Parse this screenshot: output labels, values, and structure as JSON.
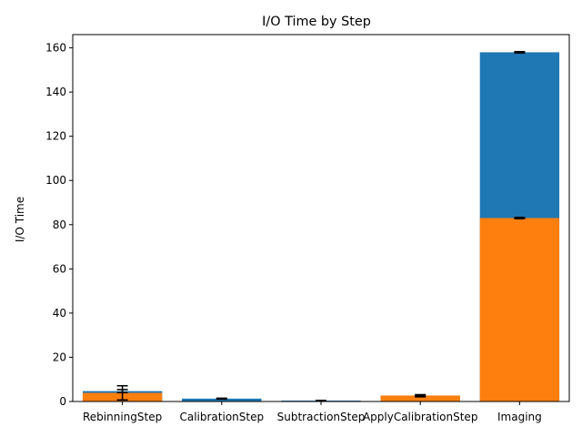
{
  "chart_data": {
    "type": "bar",
    "title": "I/O Time by Step",
    "xlabel": "",
    "ylabel": "I/O Time",
    "categories": [
      "RebinningStep",
      "CalibrationStep",
      "SubtractionStep",
      "ApplyCalibrationStep",
      "Imaging"
    ],
    "ylim": [
      0,
      166
    ],
    "yticks": [
      0,
      20,
      40,
      60,
      80,
      100,
      120,
      140,
      160
    ],
    "grid": false,
    "stacked": false,
    "series": [
      {
        "color": "#1f77b4",
        "values": [
          4.7,
          1.3,
          0.4,
          2.4,
          158.0
        ],
        "errors": [
          0.7,
          0.2,
          0.1,
          0.3,
          0.3
        ]
      },
      {
        "color": "#ff7f0e",
        "values": [
          3.9,
          0.0,
          0.0,
          2.7,
          83.0
        ],
        "errors": [
          3.2,
          0.0,
          0.0,
          0.4,
          0.3
        ]
      }
    ]
  }
}
